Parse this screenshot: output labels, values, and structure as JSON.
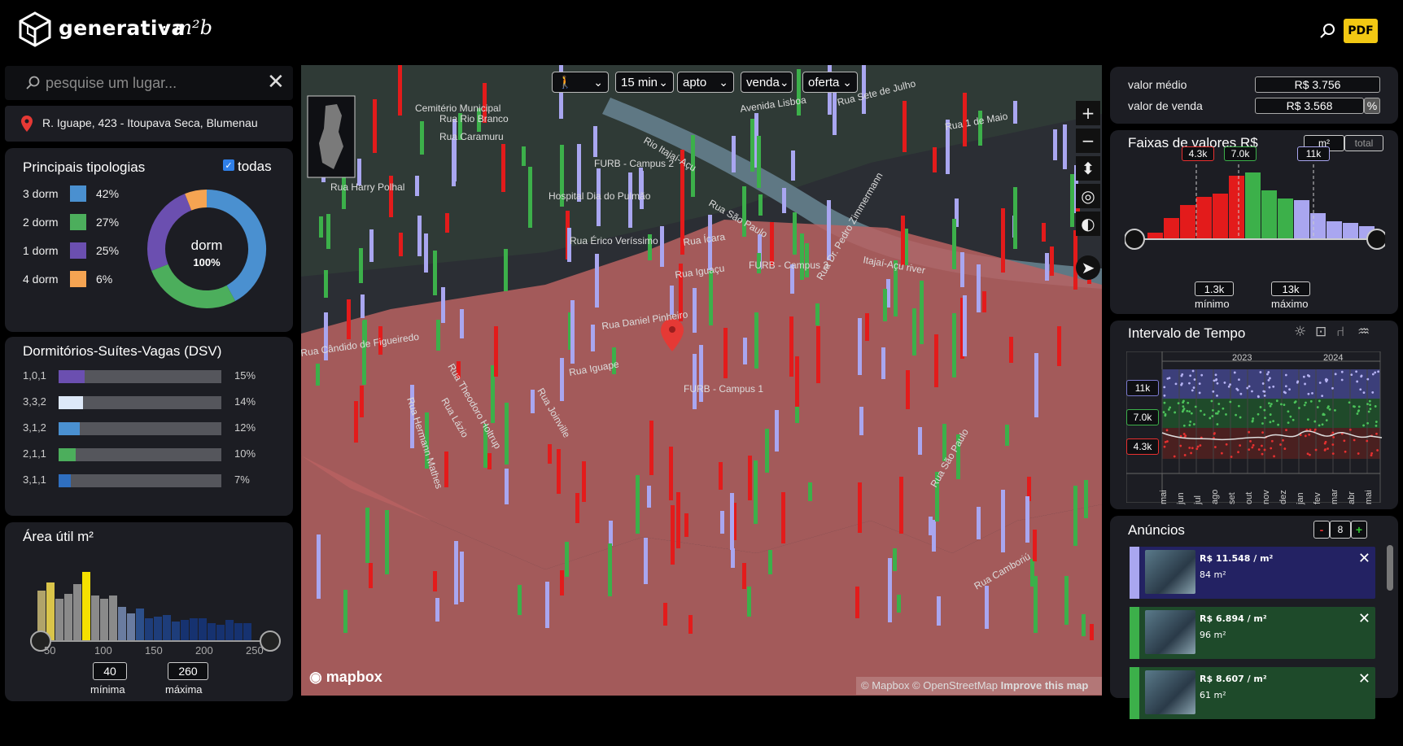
{
  "brand": {
    "name": "generativa",
    "sub": "· m²b"
  },
  "toolbar": {
    "pdf_label": "PDF"
  },
  "search": {
    "placeholder": "pesquise um lugar...",
    "address": "R. Iguape, 423 - Itoupava Seca, Blumenau"
  },
  "map": {
    "filters": [
      {
        "name": "mode",
        "value": "🚶"
      },
      {
        "name": "time",
        "value": "15 min"
      },
      {
        "name": "type",
        "value": "apto"
      },
      {
        "name": "deal",
        "value": "venda"
      },
      {
        "name": "source",
        "value": "oferta"
      }
    ],
    "street_labels": [
      "Cemitério Municipal",
      "Rua Rio Branco",
      "Rua Caramuru",
      "Rua Harry Polhal",
      "FURB - Campus 2",
      "Hospital Dia do Pulmão",
      "Avenida Lisboa",
      "Rua Sete de Julho",
      "Rua 1 de Maio",
      "Rio Itajaí-Açu",
      "Rua São Paulo",
      "Rua Érico Veríssimo",
      "Rua Ícara",
      "Rua Iguaçu",
      "FURB - Campus 3",
      "Itajaí-Açu river",
      "Rua Dr. Pedro Zimmermann",
      "Rua Cândido de Figueiredo",
      "Rua Daniel Pinheiro",
      "Rua Iguape",
      "FURB - Campus 1",
      "Rua Theodoro Holtrup",
      "Rua Joinville",
      "Rua Hermann Mathes",
      "Rua Lázio",
      "Rua São Paulo",
      "Rua Camboriú"
    ],
    "attribution": "© Mapbox © OpenStreetMap",
    "improve": "Improve this map",
    "mapbox": "mapbox"
  },
  "tipologias": {
    "title": "Principais tipologias",
    "todas": "todas",
    "center_label": "dorm",
    "center_value": "100%",
    "items": [
      {
        "label": "3 dorm",
        "pct": "42%",
        "value": 42,
        "color": "#4a90d0"
      },
      {
        "label": "2 dorm",
        "pct": "27%",
        "value": 27,
        "color": "#4cae5c"
      },
      {
        "label": "1 dorm",
        "pct": "25%",
        "value": 25,
        "color": "#6b4fb0"
      },
      {
        "label": "4 dorm",
        "pct": "6%",
        "value": 6,
        "color": "#f5a452"
      }
    ]
  },
  "dsv": {
    "title": "Dormitórios-Suítes-Vagas (DSV)",
    "rows": [
      {
        "label": "1,0,1",
        "pct": "15%",
        "value": 15,
        "color": "#6b4fb0"
      },
      {
        "label": "3,3,2",
        "pct": "14%",
        "value": 14,
        "color": "#dde8f8"
      },
      {
        "label": "3,1,2",
        "pct": "12%",
        "value": 12,
        "color": "#4a90d0"
      },
      {
        "label": "2,1,1",
        "pct": "10%",
        "value": 10,
        "color": "#4cae5c"
      },
      {
        "label": "3,1,1",
        "pct": "7%",
        "value": 7,
        "color": "#2f6fc0"
      }
    ]
  },
  "area": {
    "title": "Área útil m²",
    "ticks": [
      "50",
      "100",
      "150",
      "200",
      "250"
    ],
    "min_value": "40",
    "max_value": "260",
    "min_label": "mínima",
    "max_label": "máxima"
  },
  "valores": {
    "medio_label": "valor médio",
    "medio": "R$ 3.756",
    "venda_label": "valor de venda",
    "venda": "R$ 3.568",
    "pct": "%"
  },
  "faixas": {
    "title": "Faixas de valores R$",
    "unit_m2": "m²",
    "unit_total": "total",
    "markers": [
      {
        "label": "4.3k",
        "color": "#e83030"
      },
      {
        "label": "7.0k",
        "color": "#3cb04a"
      },
      {
        "label": "11k",
        "color": "#a9a6f0"
      }
    ],
    "min_value": "1.3k",
    "max_value": "13k",
    "min_label": "mínimo",
    "max_label": "máximo"
  },
  "tempo": {
    "title": "Intervalo de Tempo",
    "years": [
      "2023",
      "2024"
    ],
    "bands": [
      "11k",
      "7.0k",
      "4.3k"
    ],
    "months": [
      "mai",
      "jun",
      "jul",
      "ago",
      "set",
      "out",
      "nov",
      "dez",
      "jan",
      "fev",
      "mar",
      "abr",
      "mai"
    ]
  },
  "anuncios": {
    "title": "Anúncios",
    "count": "8",
    "minus": "-",
    "plus": "+",
    "items": [
      {
        "price": "R$ 11.548 / m²",
        "area": "84 m²",
        "color": "#a9a6f0",
        "bg": "#232263"
      },
      {
        "price": "R$ 6.894 / m²",
        "area": "96 m²",
        "color": "#3cb04a",
        "bg": "#1e4a2a"
      },
      {
        "price": "R$ 8.607 / m²",
        "area": "61 m²",
        "color": "#3cb04a",
        "bg": "#1e4a2a"
      }
    ]
  },
  "chart_data": [
    {
      "type": "pie",
      "categories": [
        "3 dorm",
        "2 dorm",
        "1 dorm",
        "4 dorm"
      ],
      "values": [
        42,
        27,
        25,
        6
      ]
    },
    {
      "type": "bar",
      "categories": [
        "1,0,1",
        "3,3,2",
        "3,1,2",
        "2,1,1",
        "3,1,1"
      ],
      "values": [
        15,
        14,
        12,
        10,
        7
      ]
    }
  ]
}
